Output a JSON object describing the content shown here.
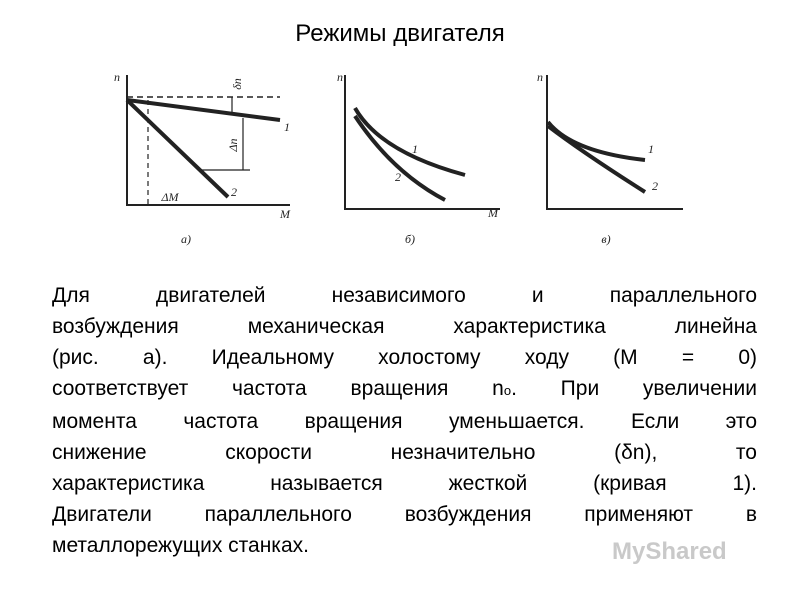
{
  "header": {
    "title": "Режимы двигателя"
  },
  "figures": {
    "a": {
      "axis_y": "n",
      "small_drop": "δn",
      "large_drop": "Δn",
      "curve1": "1",
      "curve2": "2",
      "delta_m": "ΔM",
      "axis_x": "M",
      "caption": "а)"
    },
    "b": {
      "axis_y": "n",
      "curve1": "1",
      "curve2": "2",
      "axis_x": "M",
      "caption": "б)"
    },
    "c": {
      "axis_y": "n",
      "curve1": "1",
      "curve2": "2",
      "caption": "в)"
    }
  },
  "paragraph": {
    "lines": [
      "Для двигателей независимого и параллельного",
      "возбуждения механическая характеристика линейна",
      "(рис. а). Идеальному холостому ходу (М = 0)",
      {
        "text": "соответствует частота вращения n",
        "subscript": "о",
        "tail": ". При увеличении"
      },
      "момента частота вращения уменьшается. Если это",
      "снижение скорости незначительно (δn), то",
      "характеристика называется жесткой (кривая 1).",
      "Двигатели параллельного возбуждения применяют в",
      "металлорежущих станках."
    ]
  },
  "watermark": "MyShared"
}
